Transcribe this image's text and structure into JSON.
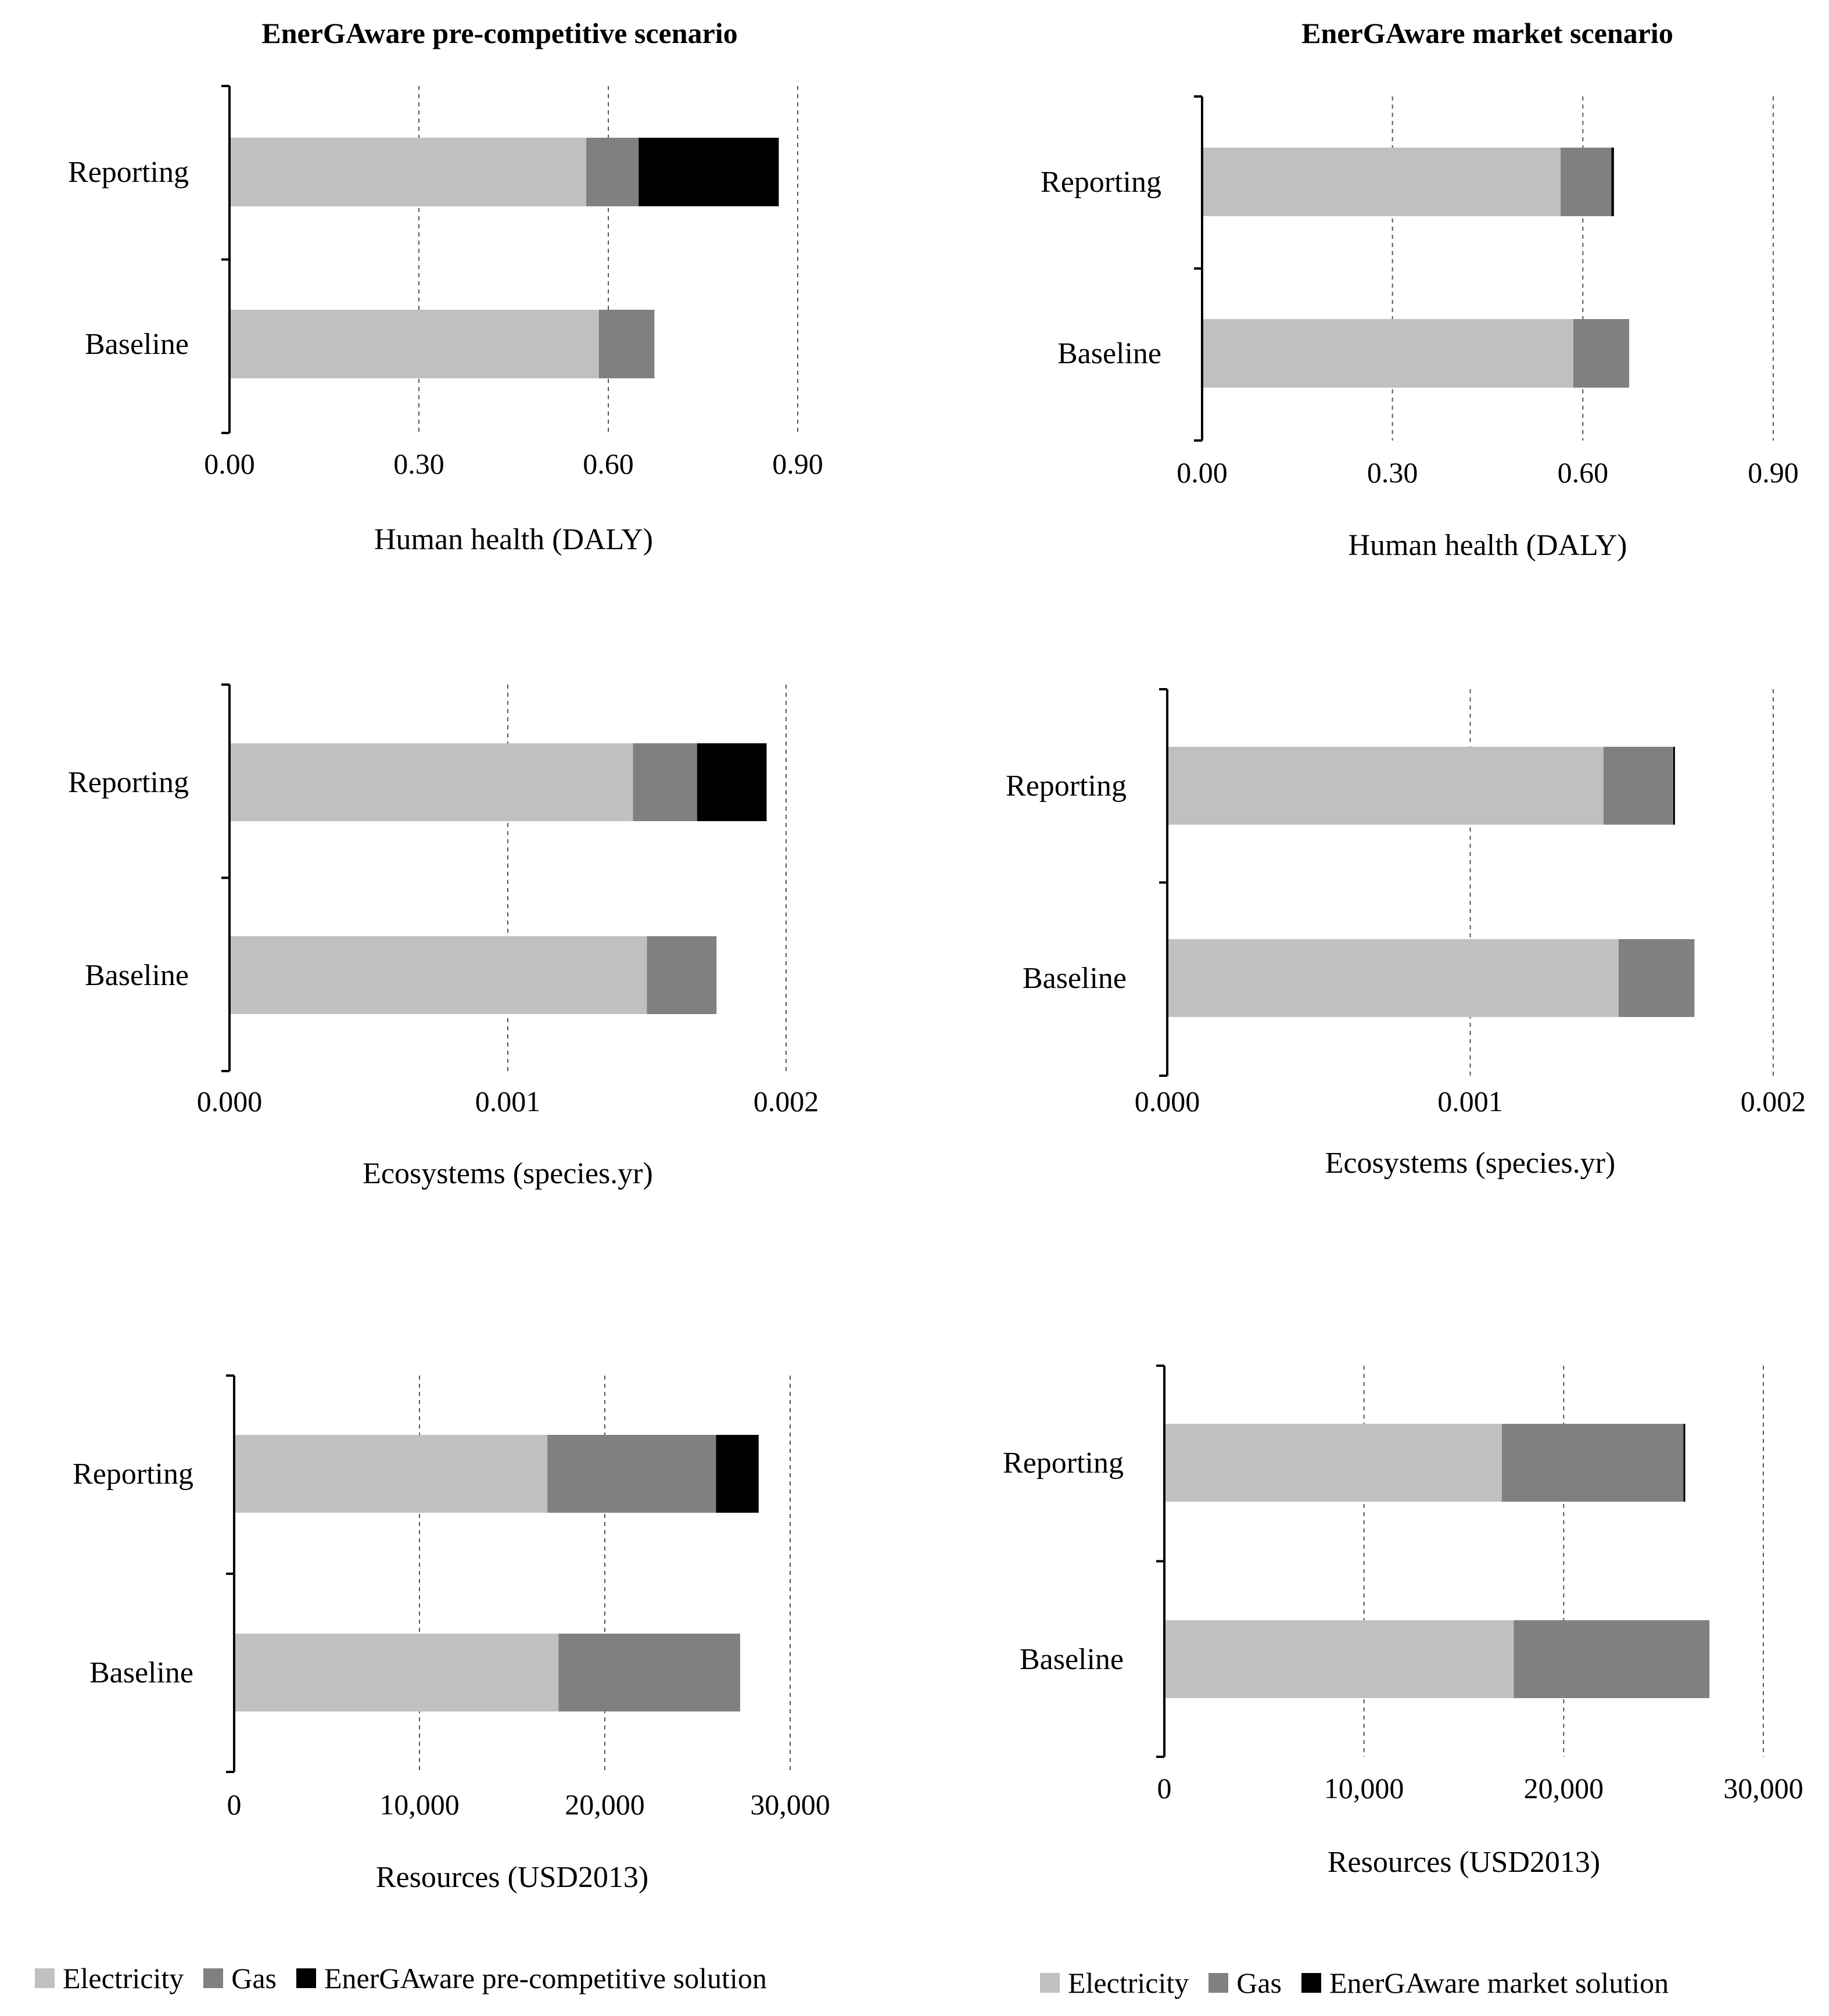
{
  "columns": [
    {
      "title": "EnerGAware pre-competitive scenario"
    },
    {
      "title": "EnerGAware market scenario"
    }
  ],
  "legends": [
    {
      "items": [
        {
          "label": "Electricity",
          "color": "#c0c0c0"
        },
        {
          "label": "Gas",
          "color": "#808080"
        },
        {
          "label": "EnerGAware pre-competitive solution",
          "color": "#000000"
        }
      ]
    },
    {
      "items": [
        {
          "label": "Electricity",
          "color": "#c0c0c0"
        },
        {
          "label": "Gas",
          "color": "#808080"
        },
        {
          "label": "EnerGAware market solution",
          "color": "#000000"
        }
      ]
    }
  ],
  "chart_data": [
    {
      "type": "bar",
      "orientation": "horizontal",
      "stacked": true,
      "scenario": "EnerGAware pre-competitive scenario",
      "categories": [
        "Reporting",
        "Baseline"
      ],
      "series": [
        {
          "name": "Electricity",
          "color": "#c0c0c0",
          "values": [
            0.565,
            0.585
          ]
        },
        {
          "name": "Gas",
          "color": "#808080",
          "values": [
            0.083,
            0.088
          ]
        },
        {
          "name": "EnerGAware pre-competitive solution",
          "color": "#000000",
          "values": [
            0.222,
            0
          ]
        }
      ],
      "xlabel": "Human health (DALY)",
      "xlim": [
        0,
        0.9
      ],
      "xticks": [
        "0.00",
        "0.30",
        "0.60",
        "0.90"
      ],
      "grid": "vertical dashed"
    },
    {
      "type": "bar",
      "orientation": "horizontal",
      "stacked": true,
      "scenario": "EnerGAware market scenario",
      "categories": [
        "Reporting",
        "Baseline"
      ],
      "series": [
        {
          "name": "Electricity",
          "color": "#c0c0c0",
          "values": [
            0.565,
            0.585
          ]
        },
        {
          "name": "Gas",
          "color": "#808080",
          "values": [
            0.08,
            0.088
          ]
        },
        {
          "name": "EnerGAware market solution",
          "color": "#000000",
          "values": [
            0.004,
            0
          ]
        }
      ],
      "xlabel": "Human health (DALY)",
      "xlim": [
        0,
        0.9
      ],
      "xticks": [
        "0.00",
        "0.30",
        "0.60",
        "0.90"
      ],
      "grid": "vertical dashed"
    },
    {
      "type": "bar",
      "orientation": "horizontal",
      "stacked": true,
      "scenario": "EnerGAware pre-competitive scenario",
      "categories": [
        "Reporting",
        "Baseline"
      ],
      "series": [
        {
          "name": "Electricity",
          "color": "#c0c0c0",
          "values": [
            0.00145,
            0.0015
          ]
        },
        {
          "name": "Gas",
          "color": "#808080",
          "values": [
            0.00023,
            0.00025
          ]
        },
        {
          "name": "EnerGAware pre-competitive solution",
          "color": "#000000",
          "values": [
            0.00025,
            0
          ]
        }
      ],
      "xlabel": "Ecosystems (species.yr)",
      "xlim": [
        0,
        0.002
      ],
      "xticks": [
        "0.000",
        "0.001",
        "0.002"
      ],
      "grid": "vertical dashed"
    },
    {
      "type": "bar",
      "orientation": "horizontal",
      "stacked": true,
      "scenario": "EnerGAware market scenario",
      "categories": [
        "Reporting",
        "Baseline"
      ],
      "series": [
        {
          "name": "Electricity",
          "color": "#c0c0c0",
          "values": [
            0.00144,
            0.00149
          ]
        },
        {
          "name": "Gas",
          "color": "#808080",
          "values": [
            0.00023,
            0.00025
          ]
        },
        {
          "name": "EnerGAware market solution",
          "color": "#000000",
          "values": [
            5e-06,
            0
          ]
        }
      ],
      "xlabel": "Ecosystems (species.yr)",
      "xlim": [
        0,
        0.002
      ],
      "xticks": [
        "0.000",
        "0.001",
        "0.002"
      ],
      "grid": "vertical dashed"
    },
    {
      "type": "bar",
      "orientation": "horizontal",
      "stacked": true,
      "scenario": "EnerGAware pre-competitive scenario",
      "categories": [
        "Reporting",
        "Baseline"
      ],
      "series": [
        {
          "name": "Electricity",
          "color": "#c0c0c0",
          "values": [
            16900,
            17500
          ]
        },
        {
          "name": "Gas",
          "color": "#808080",
          "values": [
            9100,
            9800
          ]
        },
        {
          "name": "EnerGAware pre-competitive solution",
          "color": "#000000",
          "values": [
            2300,
            0
          ]
        }
      ],
      "xlabel": "Resources (USD2013)",
      "xlim": [
        0,
        30000
      ],
      "xticks": [
        "0",
        "10,000",
        "20,000",
        "30,000"
      ],
      "grid": "vertical dashed"
    },
    {
      "type": "bar",
      "orientation": "horizontal",
      "stacked": true,
      "scenario": "EnerGAware market scenario",
      "categories": [
        "Reporting",
        "Baseline"
      ],
      "series": [
        {
          "name": "Electricity",
          "color": "#c0c0c0",
          "values": [
            16900,
            17500
          ]
        },
        {
          "name": "Gas",
          "color": "#808080",
          "values": [
            9100,
            9800
          ]
        },
        {
          "name": "EnerGAware market solution",
          "color": "#000000",
          "values": [
            70,
            0
          ]
        }
      ],
      "xlabel": "Resources (USD2013)",
      "xlim": [
        0,
        30000
      ],
      "xticks": [
        "0",
        "10,000",
        "20,000",
        "30,000"
      ],
      "grid": "vertical dashed"
    }
  ]
}
